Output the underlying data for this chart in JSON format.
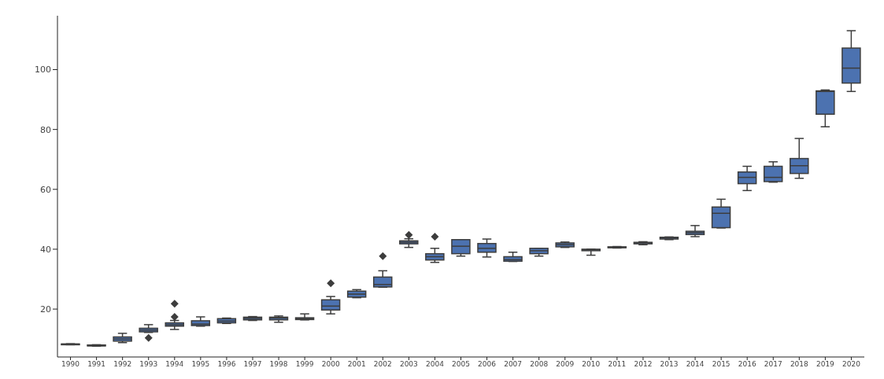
{
  "chart_data": {
    "type": "box",
    "categories": [
      "1990",
      "1991",
      "1992",
      "1993",
      "1994",
      "1995",
      "1996",
      "1997",
      "1998",
      "1999",
      "2000",
      "2001",
      "2002",
      "2003",
      "2004",
      "2005",
      "2006",
      "2007",
      "2008",
      "2009",
      "2010",
      "2011",
      "2012",
      "2013",
      "2014",
      "2015",
      "2016",
      "2017",
      "2018",
      "2019",
      "2020"
    ],
    "color": "#4c72b0",
    "boxes": [
      {
        "low": 8.1,
        "q1": 8.2,
        "median": 8.3,
        "q3": 8.35,
        "high": 8.4
      },
      {
        "low": 7.6,
        "q1": 7.7,
        "median": 7.8,
        "q3": 8,
        "high": 8.1
      },
      {
        "low": 8.8,
        "q1": 9.3,
        "median": 10,
        "q3": 10.7,
        "high": 11.9
      },
      {
        "low": 12.2,
        "q1": 12.4,
        "median": 13,
        "q3": 13.6,
        "high": 14.8,
        "outliers": [
          10.4
        ]
      },
      {
        "low": 13.2,
        "q1": 14.3,
        "median": 14.8,
        "q3": 15.4,
        "high": 16.2,
        "outliers": [
          17.4,
          21.8
        ]
      },
      {
        "low": 14.3,
        "q1": 14.5,
        "median": 15,
        "q3": 16.1,
        "high": 17.4
      },
      {
        "low": 15.2,
        "q1": 15.4,
        "median": 16,
        "q3": 16.8,
        "high": 17
      },
      {
        "low": 16.2,
        "q1": 16.4,
        "median": 16.9,
        "q3": 17.3,
        "high": 17.5
      },
      {
        "low": 15.6,
        "q1": 16.4,
        "median": 17,
        "q3": 17.3,
        "high": 17.7
      },
      {
        "low": 16.4,
        "q1": 16.5,
        "median": 16.8,
        "q3": 17.1,
        "high": 18.4
      },
      {
        "low": 18.4,
        "q1": 19.7,
        "median": 21,
        "q3": 23.1,
        "high": 24.2,
        "outliers": [
          28.6
        ]
      },
      {
        "low": 23.8,
        "q1": 24,
        "median": 25,
        "q3": 26,
        "high": 26.5
      },
      {
        "low": 27.3,
        "q1": 27.4,
        "median": 28.2,
        "q3": 30.7,
        "high": 32.8,
        "outliers": [
          37.7
        ]
      },
      {
        "low": 40.6,
        "q1": 41.8,
        "median": 42.3,
        "q3": 42.8,
        "high": 43.5,
        "outliers": [
          44.8
        ]
      },
      {
        "low": 35.6,
        "q1": 36.4,
        "median": 37.5,
        "q3": 38.5,
        "high": 40.3,
        "outliers": [
          44.2
        ]
      },
      {
        "low": 37.7,
        "q1": 38.5,
        "median": 41,
        "q3": 43.2,
        "high": 43.2
      },
      {
        "low": 37.4,
        "q1": 39,
        "median": 40.3,
        "q3": 41.9,
        "high": 43.4
      },
      {
        "low": 35.9,
        "q1": 36,
        "median": 36.5,
        "q3": 37.5,
        "high": 39
      },
      {
        "low": 37.7,
        "q1": 38.5,
        "median": 39.5,
        "q3": 40.3,
        "high": 40.3
      },
      {
        "low": 40.6,
        "q1": 40.8,
        "median": 41.5,
        "q3": 42.1,
        "high": 42.4
      },
      {
        "low": 38,
        "q1": 39.5,
        "median": 39.8,
        "q3": 40,
        "high": 40
      },
      {
        "low": 40.4,
        "q1": 40.5,
        "median": 40.6,
        "q3": 40.8,
        "high": 40.9
      },
      {
        "low": 41.5,
        "q1": 41.8,
        "median": 42.1,
        "q3": 42.3,
        "high": 42.5
      },
      {
        "low": 43.2,
        "q1": 43.4,
        "median": 43.7,
        "q3": 44,
        "high": 44.1
      },
      {
        "low": 44.2,
        "q1": 44.9,
        "median": 45.5,
        "q3": 46,
        "high": 47.9
      },
      {
        "low": 47.1,
        "q1": 47.2,
        "median": 52,
        "q3": 54.1,
        "high": 56.7
      },
      {
        "low": 59.6,
        "q1": 61.9,
        "median": 64,
        "q3": 65.8,
        "high": 67.7
      },
      {
        "low": 62.4,
        "q1": 62.6,
        "median": 64,
        "q3": 67.7,
        "high": 69.2
      },
      {
        "low": 63.7,
        "q1": 65.3,
        "median": 67.9,
        "q3": 70.3,
        "high": 77
      },
      {
        "low": 80.9,
        "q1": 85.1,
        "median": 92.7,
        "q3": 92.9,
        "high": 93.2
      },
      {
        "low": 92.7,
        "q1": 95.5,
        "median": 100.5,
        "q3": 107.2,
        "high": 113
      }
    ],
    "ylim": [
      4,
      118
    ],
    "yticks": [
      20,
      40,
      60,
      80,
      100
    ]
  }
}
